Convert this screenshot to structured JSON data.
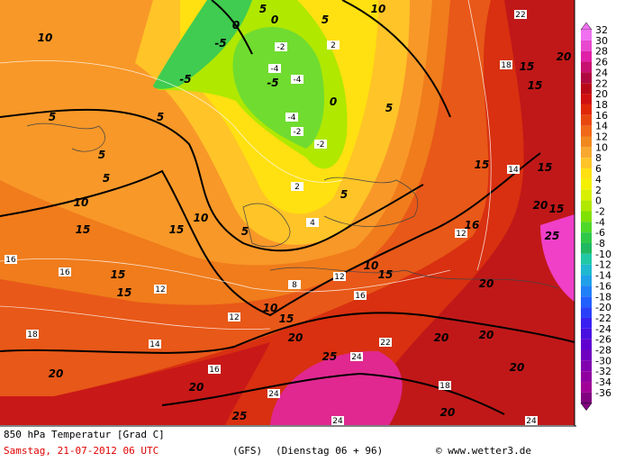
{
  "map": {
    "thick_labels": [
      "10",
      "10",
      "5",
      "0",
      "5",
      "0",
      "-5",
      "-5",
      "-5",
      "5",
      "5",
      "0",
      "5",
      "5",
      "5",
      "10",
      "15",
      "10",
      "15",
      "5",
      "5",
      "10",
      "15",
      "15",
      "15",
      "10",
      "15",
      "20",
      "20",
      "20",
      "20",
      "20",
      "25",
      "20",
      "20",
      "25",
      "15",
      "20",
      "15",
      "15",
      "15",
      "20",
      "15",
      "25",
      "20",
      "16"
    ],
    "thin_labels": [
      "22",
      "18",
      "14",
      "12",
      "16",
      "16",
      "12",
      "18",
      "14",
      "16",
      "24",
      "24",
      "22",
      "24",
      "18",
      "24",
      "12",
      "12",
      "16",
      "8",
      "2",
      "4",
      "-2",
      "-4",
      "-4",
      "-4",
      "-2",
      "-2",
      "2"
    ]
  },
  "legend": {
    "levels": [
      {
        "value": 32,
        "color": "#f070f0"
      },
      {
        "value": 30,
        "color": "#e848d0"
      },
      {
        "value": 28,
        "color": "#e020a8"
      },
      {
        "value": 26,
        "color": "#c81070"
      },
      {
        "value": 24,
        "color": "#b00840"
      },
      {
        "value": 22,
        "color": "#b80818"
      },
      {
        "value": 20,
        "color": "#d01010"
      },
      {
        "value": 18,
        "color": "#e02808"
      },
      {
        "value": 16,
        "color": "#e84810"
      },
      {
        "value": 14,
        "color": "#f06818"
      },
      {
        "value": 12,
        "color": "#f08820"
      },
      {
        "value": 10,
        "color": "#f8a830"
      },
      {
        "value": 8,
        "color": "#ffc428"
      },
      {
        "value": 6,
        "color": "#ffe010"
      },
      {
        "value": 4,
        "color": "#f4f000"
      },
      {
        "value": 2,
        "color": "#d8f000"
      },
      {
        "value": 0,
        "color": "#b0e800"
      },
      {
        "value": -2,
        "color": "#80e000"
      },
      {
        "value": -4,
        "color": "#50d828"
      },
      {
        "value": -6,
        "color": "#30c848"
      },
      {
        "value": -8,
        "color": "#20b860"
      },
      {
        "value": -10,
        "color": "#20c8a8"
      },
      {
        "value": -12,
        "color": "#20b8d0"
      },
      {
        "value": -14,
        "color": "#20a0e8"
      },
      {
        "value": -16,
        "color": "#2080f8"
      },
      {
        "value": -18,
        "color": "#2060ff"
      },
      {
        "value": -20,
        "color": "#2840f8"
      },
      {
        "value": -22,
        "color": "#3820f0"
      },
      {
        "value": -24,
        "color": "#4810e0"
      },
      {
        "value": -26,
        "color": "#6000d0"
      },
      {
        "value": -28,
        "color": "#7000c0"
      },
      {
        "value": -30,
        "color": "#8000b0"
      },
      {
        "value": -32,
        "color": "#9000a0"
      },
      {
        "value": -34,
        "color": "#a00098"
      },
      {
        "value": -36,
        "color": "#800080"
      }
    ]
  },
  "footer": {
    "title": "850 hPa Temperatur [Grad C]",
    "date": "Samstag, 21-07-2012  06 UTC",
    "model": "(GFS)",
    "run": "(Dienstag 06 + 96)",
    "credit": "© www.wetter3.de"
  }
}
